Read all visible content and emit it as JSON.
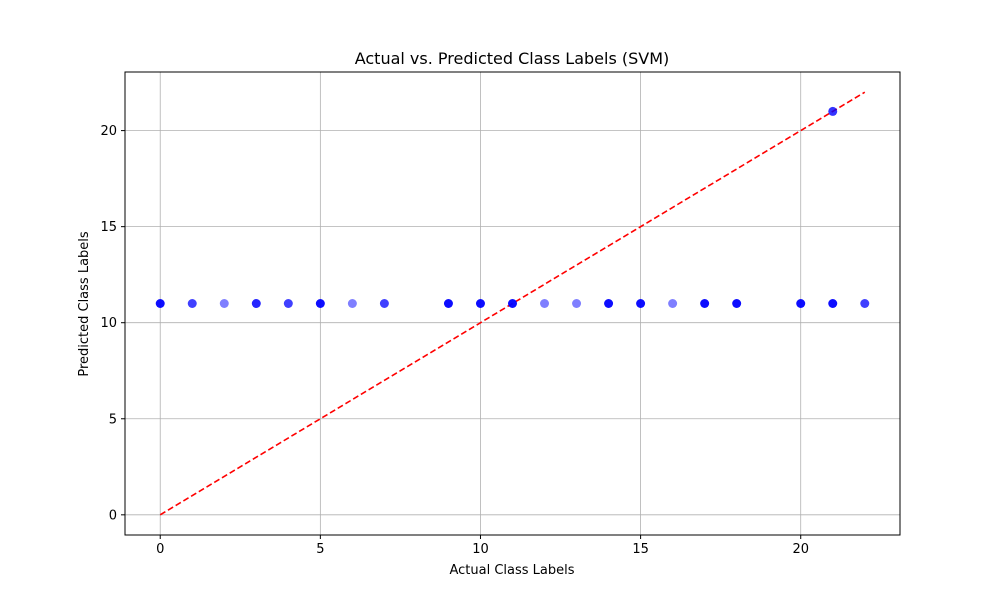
{
  "chart_data": {
    "type": "scatter",
    "title": "Actual vs. Predicted Class Labels (SVM)",
    "xlabel": "Actual Class Labels",
    "ylabel": "Predicted Class Labels",
    "xlim": [
      -1.1,
      23.1
    ],
    "ylim": [
      -1.05,
      23.05
    ],
    "xticks": [
      0,
      5,
      10,
      15,
      20
    ],
    "yticks": [
      0,
      5,
      10,
      15,
      20
    ],
    "grid": true,
    "legend": "none",
    "point_color": "#0000ff",
    "reference_line_color": "#ff0000",
    "points": [
      {
        "x": 0,
        "y": 11,
        "alpha": 0.95
      },
      {
        "x": 1,
        "y": 11,
        "alpha": 0.75
      },
      {
        "x": 2,
        "y": 11,
        "alpha": 0.5
      },
      {
        "x": 3,
        "y": 11,
        "alpha": 0.85
      },
      {
        "x": 4,
        "y": 11,
        "alpha": 0.75
      },
      {
        "x": 5,
        "y": 11,
        "alpha": 0.95
      },
      {
        "x": 6,
        "y": 11,
        "alpha": 0.5
      },
      {
        "x": 7,
        "y": 11,
        "alpha": 0.75
      },
      {
        "x": 9,
        "y": 11,
        "alpha": 0.95
      },
      {
        "x": 10,
        "y": 11,
        "alpha": 0.95
      },
      {
        "x": 11,
        "y": 11,
        "alpha": 0.95
      },
      {
        "x": 12,
        "y": 11,
        "alpha": 0.5
      },
      {
        "x": 13,
        "y": 11,
        "alpha": 0.5
      },
      {
        "x": 14,
        "y": 11,
        "alpha": 0.95
      },
      {
        "x": 15,
        "y": 11,
        "alpha": 0.95
      },
      {
        "x": 16,
        "y": 11,
        "alpha": 0.5
      },
      {
        "x": 17,
        "y": 11,
        "alpha": 0.95
      },
      {
        "x": 18,
        "y": 11,
        "alpha": 0.95
      },
      {
        "x": 20,
        "y": 11,
        "alpha": 0.95
      },
      {
        "x": 21,
        "y": 11,
        "alpha": 0.95
      },
      {
        "x": 22,
        "y": 11,
        "alpha": 0.75
      },
      {
        "x": 21,
        "y": 21,
        "alpha": 0.8
      }
    ],
    "reference_line": {
      "x": [
        0,
        22
      ],
      "y": [
        0,
        22
      ]
    }
  }
}
